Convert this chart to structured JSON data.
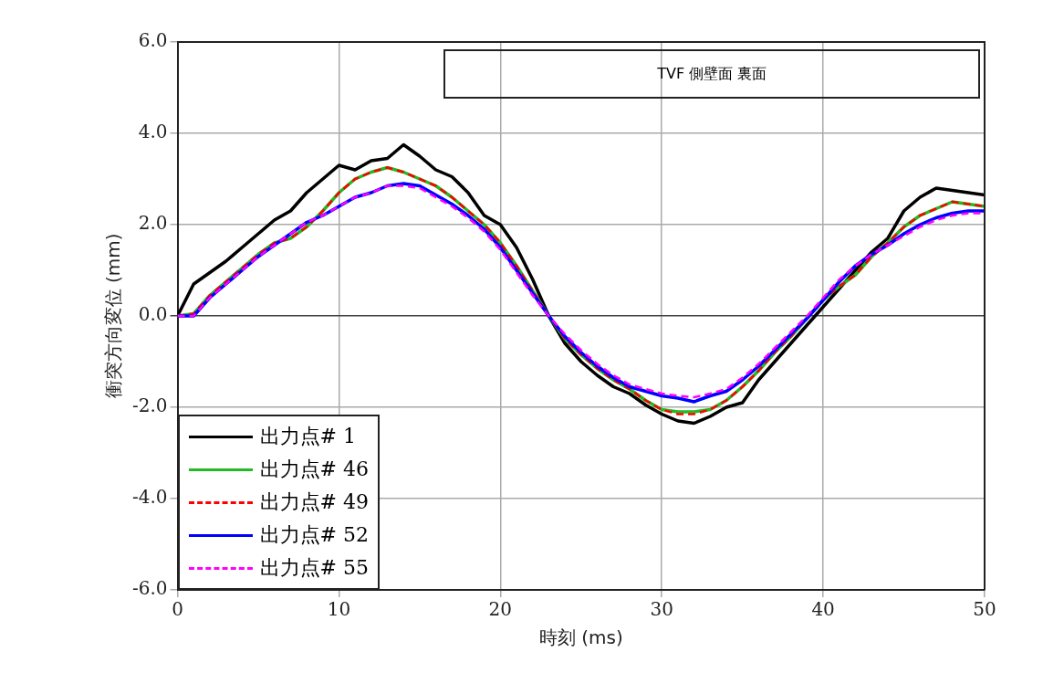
{
  "chart_data": {
    "type": "line",
    "title": "TVF 側壁面 裏面",
    "xlabel": "時刻 (ms)",
    "ylabel": "衝突方向変位 (mm)",
    "x": [
      0,
      1,
      2,
      3,
      4,
      5,
      6,
      7,
      8,
      9,
      10,
      11,
      12,
      13,
      14,
      15,
      16,
      17,
      18,
      19,
      20,
      21,
      22,
      23,
      24,
      25,
      26,
      27,
      28,
      29,
      30,
      31,
      32,
      33,
      34,
      35,
      36,
      37,
      38,
      39,
      40,
      41,
      42,
      43,
      44,
      45,
      46,
      47,
      48,
      49,
      50
    ],
    "xlim": [
      0,
      50
    ],
    "xticks": [
      0,
      10,
      20,
      30,
      40,
      50
    ],
    "ylim": [
      -6,
      6
    ],
    "yticks": [
      {
        "value": -6,
        "label": "-6.0"
      },
      {
        "value": -4,
        "label": "-4.0"
      },
      {
        "value": -2,
        "label": "-2.0"
      },
      {
        "value": 0,
        "label": "0.0"
      },
      {
        "value": 2,
        "label": "2.0"
      },
      {
        "value": 4,
        "label": "4.0"
      },
      {
        "value": 6,
        "label": "6.0"
      }
    ],
    "grid": true,
    "legend": "bottom left",
    "marker": "none",
    "series": [
      {
        "name": "出力点# 1",
        "color": "#000000",
        "line_style": "solid",
        "values": [
          0,
          0.7,
          0.95,
          1.2,
          1.5,
          1.8,
          2.1,
          2.3,
          2.7,
          3.0,
          3.3,
          3.2,
          3.4,
          3.45,
          3.75,
          3.5,
          3.2,
          3.05,
          2.7,
          2.2,
          2.0,
          1.5,
          0.8,
          0.0,
          -0.6,
          -1.0,
          -1.3,
          -1.55,
          -1.7,
          -1.95,
          -2.15,
          -2.3,
          -2.35,
          -2.2,
          -2.0,
          -1.9,
          -1.4,
          -1.0,
          -0.6,
          -0.2,
          0.2,
          0.6,
          1.0,
          1.4,
          1.7,
          2.3,
          2.6,
          2.8,
          2.75,
          2.7,
          2.65
        ]
      },
      {
        "name": "出力点# 46",
        "color": "#22bb22",
        "line_style": "solid",
        "values": [
          0,
          0.05,
          0.45,
          0.75,
          1.05,
          1.35,
          1.6,
          1.7,
          1.95,
          2.3,
          2.7,
          3.0,
          3.15,
          3.25,
          3.15,
          3.0,
          2.85,
          2.6,
          2.3,
          2.0,
          1.6,
          1.1,
          0.55,
          0.0,
          -0.5,
          -0.85,
          -1.15,
          -1.4,
          -1.6,
          -1.85,
          -2.05,
          -2.1,
          -2.1,
          -2.05,
          -1.85,
          -1.55,
          -1.2,
          -0.8,
          -0.45,
          -0.05,
          0.35,
          0.65,
          0.9,
          1.3,
          1.6,
          1.95,
          2.2,
          2.35,
          2.5,
          2.45,
          2.4
        ]
      },
      {
        "name": "出力点# 49",
        "color": "#ff0000",
        "line_style": "dashed",
        "values": [
          0,
          0.05,
          0.45,
          0.75,
          1.05,
          1.35,
          1.6,
          1.7,
          1.95,
          2.3,
          2.7,
          3.0,
          3.15,
          3.25,
          3.15,
          3.0,
          2.85,
          2.6,
          2.3,
          2.0,
          1.6,
          1.1,
          0.55,
          0.0,
          -0.5,
          -0.85,
          -1.15,
          -1.4,
          -1.6,
          -1.85,
          -2.05,
          -2.15,
          -2.15,
          -2.05,
          -1.85,
          -1.55,
          -1.2,
          -0.8,
          -0.45,
          -0.05,
          0.35,
          0.65,
          0.9,
          1.3,
          1.6,
          1.95,
          2.2,
          2.35,
          2.5,
          2.45,
          2.4
        ]
      },
      {
        "name": "出力点# 52",
        "color": "#0000ff",
        "line_style": "solid",
        "values": [
          0,
          0.0,
          0.4,
          0.7,
          1.0,
          1.3,
          1.55,
          1.8,
          2.05,
          2.2,
          2.4,
          2.6,
          2.7,
          2.85,
          2.9,
          2.85,
          2.65,
          2.45,
          2.2,
          1.9,
          1.5,
          1.0,
          0.5,
          0.0,
          -0.45,
          -0.8,
          -1.1,
          -1.35,
          -1.55,
          -1.65,
          -1.75,
          -1.8,
          -1.88,
          -1.75,
          -1.65,
          -1.4,
          -1.1,
          -0.75,
          -0.4,
          -0.05,
          0.35,
          0.75,
          1.1,
          1.35,
          1.55,
          1.8,
          2.0,
          2.15,
          2.25,
          2.3,
          2.3
        ]
      },
      {
        "name": "出力点# 55",
        "color": "#ff00ff",
        "line_style": "dashed",
        "values": [
          0,
          0.0,
          0.4,
          0.7,
          1.0,
          1.3,
          1.55,
          1.8,
          2.05,
          2.2,
          2.4,
          2.6,
          2.7,
          2.85,
          2.85,
          2.8,
          2.6,
          2.4,
          2.15,
          1.85,
          1.45,
          0.95,
          0.45,
          0.0,
          -0.4,
          -0.75,
          -1.05,
          -1.3,
          -1.5,
          -1.6,
          -1.7,
          -1.75,
          -1.78,
          -1.7,
          -1.6,
          -1.35,
          -1.05,
          -0.7,
          -0.35,
          0.0,
          0.4,
          0.8,
          1.1,
          1.35,
          1.55,
          1.75,
          1.95,
          2.1,
          2.2,
          2.25,
          2.25
        ]
      }
    ]
  }
}
